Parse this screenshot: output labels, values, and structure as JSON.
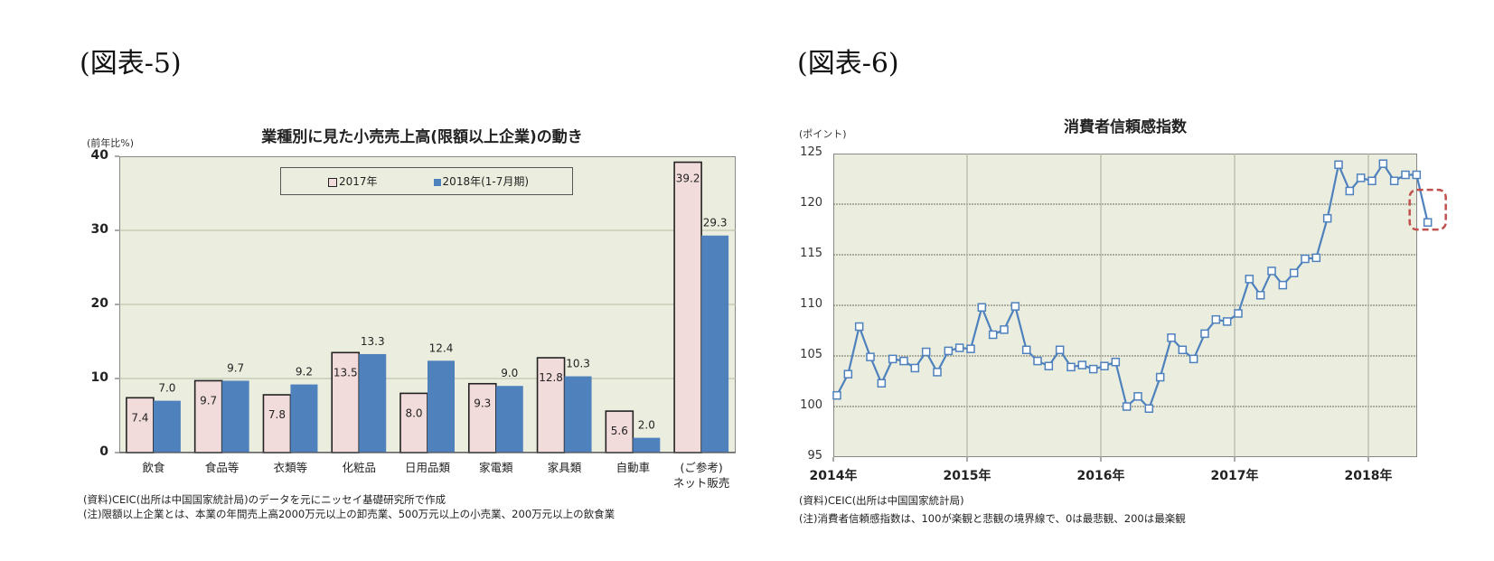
{
  "figures": {
    "left_label": "(図表-5)",
    "right_label": "(図表-6)"
  },
  "chart_data": [
    {
      "type": "bar",
      "title": "業種別に見た小売売上高(限額以上企業)の動き",
      "ylabel": "(前年比%)",
      "xlabel": "",
      "ylim": [
        0,
        40
      ],
      "yticks": [
        0,
        10,
        20,
        30,
        40
      ],
      "grid": true,
      "legend_position": "top-center-inside",
      "categories": [
        "飲食",
        "食品等",
        "衣類等",
        "化粧品",
        "日用品類",
        "家電類",
        "家具類",
        "自動車",
        "(ご参考)\nネット販売"
      ],
      "series": [
        {
          "name": "2017年",
          "color": "#f2dcdb",
          "values": [
            7.4,
            9.7,
            7.8,
            13.5,
            8.0,
            9.3,
            12.8,
            5.6,
            39.2
          ]
        },
        {
          "name": "2018年(1-7月期)",
          "color": "#4f81bd",
          "values": [
            7.0,
            9.7,
            9.2,
            13.3,
            12.4,
            9.0,
            10.3,
            2.0,
            29.3
          ]
        }
      ],
      "notes": [
        "(資料)CEIC(出所は中国国家統計局)のデータを元にニッセイ基礎研究所で作成",
        "(注)限額以上企業とは、本業の年間売上高2000万元以上の卸売業、500万元以上の小売業、200万元以上の飲食業"
      ]
    },
    {
      "type": "line",
      "title": "消費者信頼感指数",
      "ylabel": "(ポイント)",
      "xlabel": "",
      "ylim": [
        95,
        125
      ],
      "yticks": [
        95,
        100,
        105,
        110,
        115,
        120,
        125
      ],
      "xticks": [
        "2014年",
        "2015年",
        "2016年",
        "2017年",
        "2018年"
      ],
      "grid": true,
      "series": [
        {
          "name": "消費者信頼感指数",
          "color": "#4f81bd",
          "marker": "square",
          "start": "2014-01",
          "frequency": "monthly",
          "values": [
            101.1,
            103.2,
            107.9,
            104.9,
            102.3,
            104.7,
            104.5,
            103.8,
            105.4,
            103.4,
            105.5,
            105.8,
            105.7,
            109.8,
            107.1,
            107.6,
            109.9,
            105.6,
            104.5,
            104.0,
            105.6,
            103.9,
            104.1,
            103.7,
            104.0,
            104.4,
            100.0,
            101.0,
            99.8,
            102.9,
            106.8,
            105.6,
            104.7,
            107.2,
            108.6,
            108.4,
            109.2,
            112.6,
            111.0,
            113.4,
            112.0,
            113.2,
            114.6,
            114.7,
            118.6,
            123.9,
            121.3,
            122.6,
            122.3,
            124.0,
            122.3,
            122.9,
            122.9,
            118.2
          ]
        }
      ],
      "annotations": [
        {
          "type": "dashed-rounded-box",
          "color": "#c0504d",
          "target": "2018-06 point (118.2)"
        }
      ],
      "notes": [
        "(資料)CEIC(出所は中国国家統計局)",
        "(注)消費者信頼感指数は、100が楽観と悲観の境界線で、0は最悲観、200は最楽観"
      ]
    }
  ]
}
